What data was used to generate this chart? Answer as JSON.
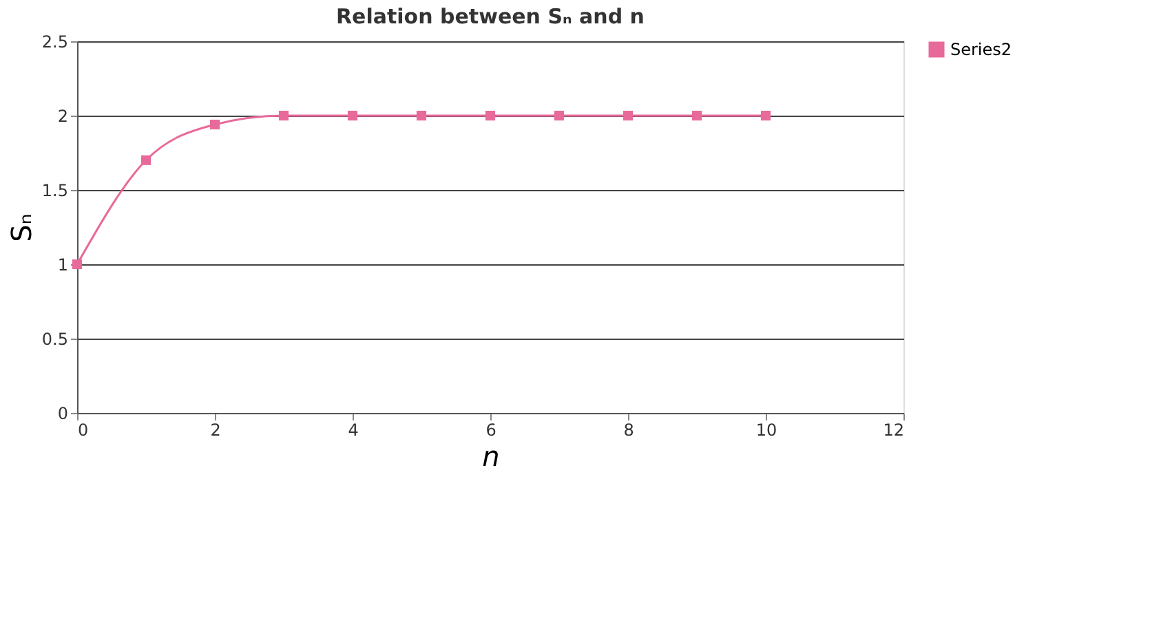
{
  "chart_data": {
    "type": "line",
    "title": "Relation between Sₙ and n",
    "xlabel": "n",
    "ylabel": "Sₙ",
    "x": [
      0,
      1,
      2,
      3,
      4,
      5,
      6,
      7,
      8,
      9,
      10
    ],
    "series": [
      {
        "name": "Series2",
        "color": "#e86a9a",
        "values": [
          1,
          1.7,
          1.94,
          2.0,
          2.0,
          2.0,
          2.0,
          2.0,
          2.0,
          2.0,
          2.0
        ]
      }
    ],
    "xlim": [
      0,
      12
    ],
    "xticks": [
      0,
      2,
      4,
      6,
      8,
      10,
      12
    ],
    "ylim": [
      0,
      2.5
    ],
    "yticks": [
      0,
      0.5,
      1,
      1.5,
      2,
      2.5
    ],
    "grid": "y",
    "legend": "right",
    "marker": "square",
    "line_style": "solid"
  }
}
